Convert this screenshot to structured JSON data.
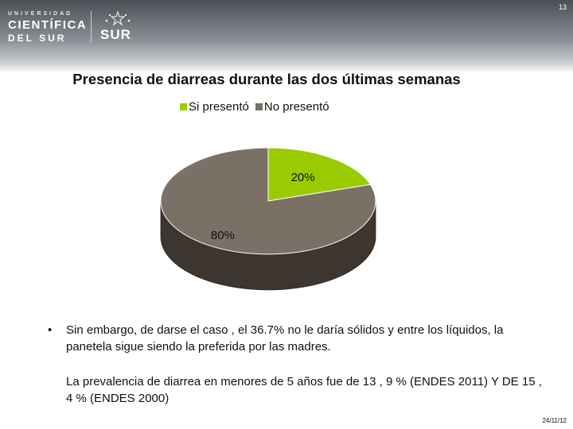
{
  "header": {
    "logo_line1": "UNIVERSIDAD",
    "logo_line2": "CIENTÍFICA",
    "logo_line3": "DEL SUR",
    "logo_sur": "SUR",
    "page_number": "13"
  },
  "chart_data": {
    "type": "pie",
    "title": "Presencia de diarreas durante las dos últimas semanas",
    "categories": [
      "Si presentó",
      "No presentó"
    ],
    "values": [
      20,
      80
    ],
    "data_labels": [
      "20%",
      "80%"
    ],
    "colors": [
      "#99cc00",
      "#7a7066"
    ],
    "legend_position": "top",
    "style": "3d"
  },
  "body": {
    "bullet_text": "Sin embargo, de darse el caso , el 36.7% no le daría sólidos y entre los líquidos, la panetela sigue siendo la preferida por las madres.",
    "paragraph": "La prevalencia de diarrea en menores de 5 años fue de 13 , 9 % (ENDES 2011) Y DE 15 , 4 % (ENDES 2000)"
  },
  "footer": {
    "date": "24/11/12"
  }
}
